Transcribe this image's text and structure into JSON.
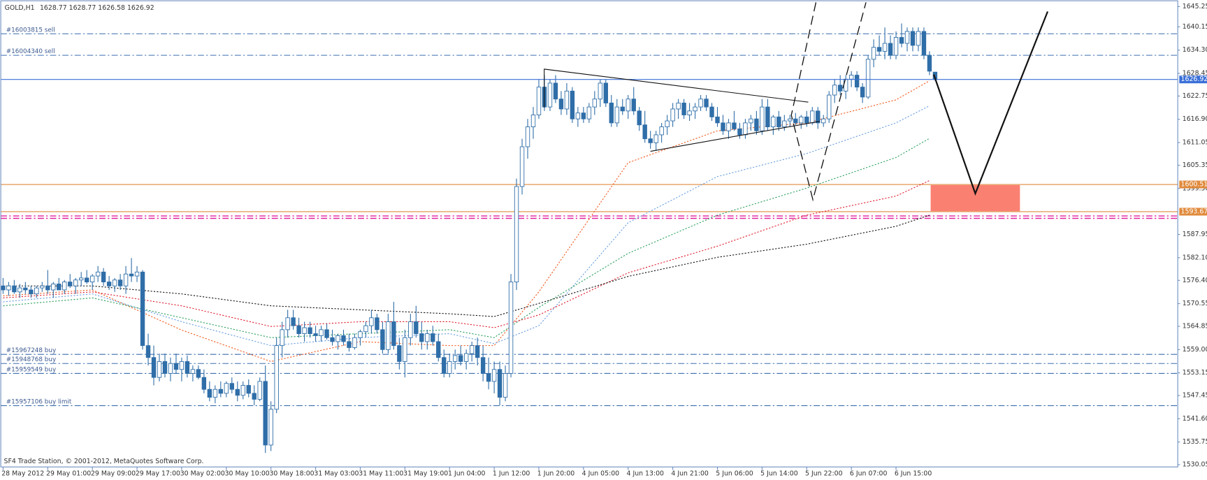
{
  "chart_data": {
    "type": "candlestick",
    "symbol": "GOLD,H1",
    "footer": "SF4 Trade Station, © 2001-2012, MetaQuotes Software Corp.",
    "ylim": [
      1529.1,
      1646.9
    ],
    "yticks": [
      1645.25,
      1640.15,
      {
        "value": 1634.3,
        "label": "1634.30"
      },
      1628.45,
      1622.75,
      {
        "value": 1616.9,
        "label": "1616.90"
      },
      1611.05,
      1605.35,
      {
        "value": 1599.5,
        "label": "1599.50"
      },
      1587.95,
      {
        "value": 1582.1,
        "label": "1582.10"
      },
      {
        "value": 1576.4,
        "label": "1576.40"
      },
      1570.55,
      1564.85,
      {
        "value": 1559,
        "label": "1559.00"
      },
      1553.15,
      1547.45,
      {
        "value": 1541.6,
        "label": "1541.60"
      },
      1535.75,
      1530.05
    ],
    "time_labels": [
      "28 May 2012",
      "29 May 01:00",
      "29 May 09:00",
      "29 May 17:00",
      "30 May 02:00",
      "30 May 10:00",
      "30 May 18:00",
      "31 May 03:00",
      "31 May 11:00",
      "31 May 19:00",
      "1 Jun 04:00",
      "1 Jun 12:00",
      "1 Jun 20:00",
      "4 Jun 05:00",
      "4 Jun 13:00",
      "4 Jun 21:00",
      "5 Jun 06:00",
      "5 Jun 14:00",
      "5 Jun 22:00",
      "6 Jun 07:00",
      "6 Jun 15:00"
    ],
    "color": "#2f6ea8",
    "candles": [
      [
        1575,
        1577,
        1573,
        1574
      ],
      [
        1574,
        1576,
        1572.5,
        1575
      ],
      [
        1575,
        1576.5,
        1573,
        1573.5
      ],
      [
        1573.5,
        1575.5,
        1572,
        1574.5
      ],
      [
        1574.5,
        1576,
        1573,
        1574
      ],
      [
        1574,
        1575,
        1572,
        1573
      ],
      [
        1573,
        1575,
        1572,
        1574.5
      ],
      [
        1574.5,
        1576,
        1573.5,
        1575
      ],
      [
        1575,
        1579,
        1573,
        1574
      ],
      [
        1574,
        1576,
        1572,
        1575.5
      ],
      [
        1575.5,
        1577,
        1574,
        1574
      ],
      [
        1574,
        1576.5,
        1573,
        1576
      ],
      [
        1576,
        1578,
        1574.5,
        1575
      ],
      [
        1575,
        1577,
        1573,
        1576.5
      ],
      [
        1576.5,
        1578.5,
        1575,
        1577
      ],
      [
        1577,
        1579,
        1575.5,
        1576
      ],
      [
        1576,
        1578,
        1574,
        1577.5
      ],
      [
        1577.5,
        1580,
        1576,
        1578.5
      ],
      [
        1578.5,
        1579.5,
        1575,
        1576
      ],
      [
        1576,
        1577.5,
        1574,
        1575
      ],
      [
        1575,
        1577,
        1573.5,
        1576.5
      ],
      [
        1576.5,
        1578,
        1574,
        1575
      ],
      [
        1575,
        1580,
        1573,
        1578
      ],
      [
        1578,
        1582,
        1576,
        1577.5
      ],
      [
        1577.5,
        1580,
        1576,
        1578.5
      ],
      [
        1578.5,
        1579,
        1559,
        1560
      ],
      [
        1560,
        1563,
        1555,
        1557
      ],
      [
        1557,
        1560,
        1550,
        1552
      ],
      [
        1552,
        1558,
        1551,
        1556
      ],
      [
        1556,
        1558,
        1552,
        1553
      ],
      [
        1553,
        1557,
        1551,
        1555.5
      ],
      [
        1555.5,
        1558,
        1553,
        1554
      ],
      [
        1554,
        1557,
        1551,
        1556
      ],
      [
        1556,
        1557.5,
        1552,
        1553
      ],
      [
        1553,
        1555,
        1551,
        1554
      ],
      [
        1554,
        1555,
        1551.5,
        1552
      ],
      [
        1552,
        1554,
        1548,
        1549
      ],
      [
        1549,
        1551,
        1546,
        1547
      ],
      [
        1547,
        1550,
        1545.5,
        1549
      ],
      [
        1549,
        1551,
        1547,
        1548
      ],
      [
        1548,
        1551,
        1547,
        1550.5
      ],
      [
        1550.5,
        1552,
        1548,
        1549
      ],
      [
        1549,
        1551,
        1546,
        1547.5
      ],
      [
        1547.5,
        1551,
        1546.5,
        1550
      ],
      [
        1550,
        1551.5,
        1547,
        1548
      ],
      [
        1548,
        1550,
        1545,
        1546.5
      ],
      [
        1546.5,
        1552,
        1546,
        1551
      ],
      [
        1551,
        1555,
        1533,
        1535
      ],
      [
        1535,
        1546,
        1533.5,
        1544
      ],
      [
        1544,
        1562,
        1543,
        1560
      ],
      [
        1560,
        1566,
        1557,
        1564
      ],
      [
        1564,
        1569,
        1562,
        1567
      ],
      [
        1567,
        1569,
        1564,
        1565
      ],
      [
        1565,
        1567,
        1562,
        1563
      ],
      [
        1563,
        1566,
        1561,
        1564.5
      ],
      [
        1564.5,
        1566,
        1562,
        1563
      ],
      [
        1563,
        1565,
        1561,
        1562.5
      ],
      [
        1562.5,
        1565,
        1561,
        1564
      ],
      [
        1564,
        1565.5,
        1561.5,
        1562
      ],
      [
        1562,
        1564,
        1560,
        1561
      ],
      [
        1561,
        1563,
        1559,
        1562.5
      ],
      [
        1562.5,
        1564,
        1560,
        1561
      ],
      [
        1561,
        1563,
        1558.5,
        1559.5
      ],
      [
        1559.5,
        1563,
        1559,
        1562
      ],
      [
        1562,
        1564,
        1560,
        1563.5
      ],
      [
        1563.5,
        1566,
        1562,
        1565
      ],
      [
        1565,
        1569,
        1563,
        1567
      ],
      [
        1567,
        1568,
        1563,
        1564
      ],
      [
        1564,
        1566,
        1558,
        1559
      ],
      [
        1559,
        1568,
        1558,
        1566
      ],
      [
        1566,
        1571,
        1559,
        1560
      ],
      [
        1560,
        1562,
        1554,
        1556
      ],
      [
        1556,
        1564,
        1552,
        1562
      ],
      [
        1562,
        1568,
        1560,
        1566
      ],
      [
        1566,
        1570,
        1562,
        1563
      ],
      [
        1563,
        1566,
        1559,
        1561
      ],
      [
        1561,
        1564,
        1559,
        1563
      ],
      [
        1563,
        1565,
        1560,
        1561
      ],
      [
        1561,
        1563,
        1556,
        1557
      ],
      [
        1557,
        1559,
        1552,
        1553
      ],
      [
        1553,
        1558,
        1552,
        1556
      ],
      [
        1556,
        1559,
        1554,
        1557.5
      ],
      [
        1557.5,
        1560,
        1555,
        1556
      ],
      [
        1556,
        1559,
        1554,
        1558
      ],
      [
        1558,
        1561,
        1556,
        1560
      ],
      [
        1560,
        1562,
        1555,
        1557
      ],
      [
        1557,
        1560,
        1551,
        1553
      ],
      [
        1553,
        1557,
        1549,
        1551
      ],
      [
        1551,
        1556,
        1548,
        1554
      ],
      [
        1554,
        1556,
        1545,
        1547
      ],
      [
        1547,
        1555,
        1546,
        1553
      ],
      [
        1553,
        1578,
        1552,
        1576
      ],
      [
        1576,
        1602,
        1574,
        1600
      ],
      [
        1600,
        1612,
        1598,
        1610
      ],
      [
        1610,
        1617,
        1607,
        1615
      ],
      [
        1615,
        1620,
        1612,
        1618
      ],
      [
        1618,
        1627,
        1617,
        1625
      ],
      [
        1625,
        1628,
        1619,
        1620
      ],
      [
        1620,
        1627,
        1619,
        1626
      ],
      [
        1626,
        1628,
        1621,
        1622
      ],
      [
        1622,
        1624,
        1618,
        1619.5
      ],
      [
        1619.5,
        1626,
        1618,
        1624
      ],
      [
        1624,
        1625,
        1616,
        1617
      ],
      [
        1617,
        1620,
        1615,
        1618.5
      ],
      [
        1618.5,
        1620,
        1616,
        1617
      ],
      [
        1617,
        1621,
        1616,
        1620
      ],
      [
        1620,
        1624,
        1618,
        1622
      ],
      [
        1622,
        1627,
        1620,
        1626
      ],
      [
        1626,
        1627,
        1620,
        1621
      ],
      [
        1621,
        1623,
        1615,
        1616
      ],
      [
        1616,
        1622,
        1615,
        1620
      ],
      [
        1620,
        1622,
        1618,
        1619
      ],
      [
        1619,
        1623,
        1617,
        1622
      ],
      [
        1622,
        1625,
        1618,
        1619
      ],
      [
        1619,
        1620,
        1614,
        1615.5
      ],
      [
        1615.5,
        1619,
        1611,
        1612
      ],
      [
        1612,
        1614,
        1609.5,
        1611
      ],
      [
        1611,
        1614,
        1609,
        1613
      ],
      [
        1613,
        1616,
        1611,
        1615
      ],
      [
        1615,
        1618,
        1613,
        1616.5
      ],
      [
        1616.5,
        1621,
        1615,
        1619.5
      ],
      [
        1619.5,
        1622,
        1617,
        1621
      ],
      [
        1621,
        1622,
        1617,
        1618
      ],
      [
        1618,
        1621,
        1616.5,
        1619
      ],
      [
        1619,
        1621,
        1617,
        1620
      ],
      [
        1620,
        1623,
        1619,
        1622
      ],
      [
        1622,
        1623,
        1619,
        1620
      ],
      [
        1620,
        1621,
        1616.5,
        1617.5
      ],
      [
        1617.5,
        1620,
        1615,
        1616
      ],
      [
        1616,
        1618,
        1613,
        1614
      ],
      [
        1614,
        1617,
        1612,
        1616
      ],
      [
        1616,
        1619,
        1614,
        1614.5
      ],
      [
        1614.5,
        1616,
        1612,
        1613
      ],
      [
        1613,
        1617,
        1612,
        1616
      ],
      [
        1616,
        1618,
        1614,
        1617
      ],
      [
        1617,
        1619,
        1613,
        1614
      ],
      [
        1614,
        1622,
        1613,
        1620
      ],
      [
        1620,
        1622,
        1614,
        1615
      ],
      [
        1615,
        1618,
        1613,
        1617.5
      ],
      [
        1617.5,
        1619,
        1614,
        1615
      ],
      [
        1615,
        1618,
        1614,
        1616.5
      ],
      [
        1616.5,
        1618,
        1615,
        1617
      ],
      [
        1617,
        1618.5,
        1615.5,
        1616
      ],
      [
        1616,
        1618,
        1614.5,
        1617.5
      ],
      [
        1617.5,
        1619,
        1615,
        1616
      ],
      [
        1616,
        1620,
        1615.5,
        1619
      ],
      [
        1619,
        1620,
        1614.5,
        1616
      ],
      [
        1616,
        1618,
        1615,
        1617
      ],
      [
        1617,
        1624,
        1616,
        1623
      ],
      [
        1623,
        1627,
        1621,
        1625.5
      ],
      [
        1625.5,
        1628,
        1623,
        1624
      ],
      [
        1624,
        1628,
        1622,
        1627
      ],
      [
        1627,
        1629,
        1625,
        1628
      ],
      [
        1628,
        1629,
        1624,
        1625
      ],
      [
        1625,
        1626,
        1621,
        1622.5
      ],
      [
        1622.5,
        1633,
        1622,
        1632
      ],
      [
        1632,
        1637,
        1630,
        1635
      ],
      [
        1635,
        1638,
        1633,
        1634
      ],
      [
        1634,
        1640,
        1632,
        1636
      ],
      [
        1636,
        1638,
        1632,
        1633
      ],
      [
        1633,
        1639,
        1632,
        1637.5
      ],
      [
        1637.5,
        1641,
        1635,
        1636
      ],
      [
        1636,
        1640,
        1634,
        1639
      ],
      [
        1639,
        1640,
        1634,
        1635.5
      ],
      [
        1635.5,
        1640,
        1634,
        1639
      ],
      [
        1639,
        1640,
        1632,
        1633
      ],
      [
        1633,
        1634,
        1628,
        1629
      ],
      [
        1628.77,
        1628.77,
        1626.58,
        1626.92
      ]
    ],
    "ma_bars": [
      0,
      16,
      32,
      48,
      64,
      80,
      88,
      96,
      112,
      128,
      144,
      160,
      166
    ],
    "moving_averages": [
      {
        "color": "#f05a1e",
        "values": [
          1572.5,
          1574,
          1563.9,
          1556,
          1561,
          1560,
          1560,
          1573.5,
          1606,
          1614,
          1616,
          1621.8,
          1626.6
        ]
      },
      {
        "color": "#6a9fe0",
        "values": [
          1571,
          1573,
          1566,
          1560,
          1562,
          1563,
          1560.5,
          1565,
          1590.9,
          1602.5,
          1608.3,
          1616,
          1620.3
        ]
      },
      {
        "color": "#2ea060",
        "values": [
          1570,
          1572,
          1567,
          1562,
          1563,
          1564,
          1562,
          1569.6,
          1583.2,
          1592.8,
          1599.6,
          1607.3,
          1612.1
        ]
      },
      {
        "color": "#e02030",
        "values": [
          1572,
          1573.5,
          1570,
          1564.8,
          1566,
          1566,
          1564.5,
          1567.7,
          1578.3,
          1585,
          1592.8,
          1597.6,
          1601.5
        ]
      },
      {
        "color": "#111111",
        "values": [
          1575,
          1575,
          1573,
          1570,
          1569,
          1568,
          1567.3,
          1570.6,
          1577.4,
          1582.2,
          1585.5,
          1590,
          1592.8
        ]
      }
    ],
    "order_lines": [
      {
        "label": "#16003815 sell",
        "price": 1638.4
      },
      {
        "label": "#16004340 sell",
        "price": 1633
      },
      {
        "label": "#15967248 buy",
        "price": 1557.8
      },
      {
        "label": "#15948768 buy",
        "price": 1555.5
      },
      {
        "label": "#15959549 buy",
        "price": 1553
      },
      {
        "label": "#15957106 buy limit",
        "price": 1544.9
      }
    ],
    "price_levels": [
      {
        "value": 1600.51,
        "color": "#e08a3c"
      },
      {
        "value": 1593.67,
        "color": "#e08a3c"
      }
    ],
    "magenta_levels": [
      1592.6,
      1592
    ],
    "current_color": "#3a6fd8"
  }
}
